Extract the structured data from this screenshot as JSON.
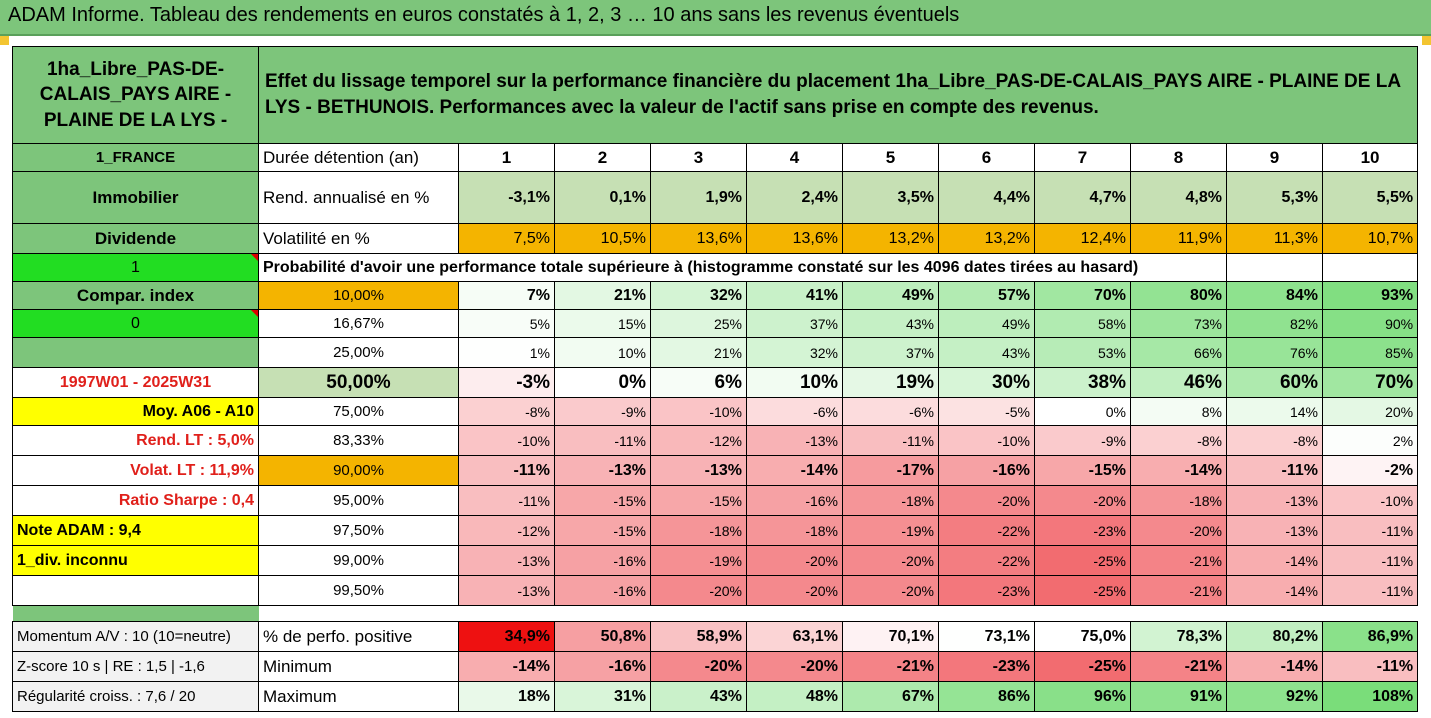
{
  "report_title": "ADAM Informe. Tableau des rendements en euros constatés à 1, 2, 3 … 10 ans sans les revenus éventuels",
  "asset_name": "1ha_Libre_PAS-DE-CALAIS_PAYS AIRE - PLAINE DE LA LYS -",
  "description": "Effet du lissage temporel sur la performance financière du placement 1ha_Libre_PAS-DE-CALAIS_PAYS AIRE - PLAINE DE LA LYS - BETHUNOIS. Performances avec la valeur de l'actif sans prise en compte des revenus.",
  "colors": {
    "header_green": "#7DC57B",
    "light_green": "#C6E0B4",
    "orange": "#F4B400",
    "bright_green": "#22DD22",
    "yellow": "#FFFF00",
    "red_text": "#E0201B"
  },
  "side": {
    "country": "1_FRANCE",
    "category": "Immobilier",
    "dividend_label": "Dividende",
    "dividend_value": "1",
    "compar_label": "Compar. index",
    "compar_value": "0",
    "period": "1997W01 - 2025W31",
    "moy": "Moy. A06 - A10",
    "rend_lt": "Rend. LT :   5,0%",
    "volat_lt": "Volat. LT :   11,9%",
    "sharpe": "Ratio Sharpe :   0,4",
    "note": "Note ADAM : 9,4",
    "div": "1_div. inconnu",
    "momentum": "Momentum A/V : 10 (10=neutre)",
    "zscore": "Z-score 10 s  |  RE : 1,5  |  -1,6",
    "regularite": "Régularité croiss. : 7,6 / 20"
  },
  "header_row": {
    "label": "Durée détention (an)",
    "years": [
      "1",
      "2",
      "3",
      "4",
      "5",
      "6",
      "7",
      "8",
      "9",
      "10"
    ]
  },
  "rend_row": {
    "label": "Rend. annualisé en %",
    "values": [
      "-3,1%",
      "0,1%",
      "1,9%",
      "2,4%",
      "3,5%",
      "4,4%",
      "4,7%",
      "4,8%",
      "5,3%",
      "5,5%"
    ]
  },
  "vol_row": {
    "label": "Volatilité en %",
    "values": [
      "7,5%",
      "10,5%",
      "13,6%",
      "13,6%",
      "13,2%",
      "13,2%",
      "12,4%",
      "11,9%",
      "11,3%",
      "10,7%"
    ]
  },
  "prob_title": "Probabilité d'avoir une performance totale supérieure à (histogramme constaté sur les 4096 dates tirées au hasard)",
  "prob_rows": [
    {
      "label": "10,00%",
      "values": [
        "7%",
        "21%",
        "32%",
        "41%",
        "49%",
        "57%",
        "70%",
        "80%",
        "84%",
        "93%"
      ]
    },
    {
      "label": "16,67%",
      "values": [
        "5%",
        "15%",
        "25%",
        "37%",
        "43%",
        "49%",
        "58%",
        "73%",
        "82%",
        "90%"
      ]
    },
    {
      "label": "25,00%",
      "values": [
        "1%",
        "10%",
        "21%",
        "32%",
        "37%",
        "43%",
        "53%",
        "66%",
        "76%",
        "85%"
      ]
    },
    {
      "label": "50,00%",
      "values": [
        "-3%",
        "0%",
        "6%",
        "10%",
        "19%",
        "30%",
        "38%",
        "46%",
        "60%",
        "70%"
      ]
    },
    {
      "label": "75,00%",
      "values": [
        "-8%",
        "-9%",
        "-10%",
        "-6%",
        "-6%",
        "-5%",
        "0%",
        "8%",
        "14%",
        "20%"
      ]
    },
    {
      "label": "83,33%",
      "values": [
        "-10%",
        "-11%",
        "-12%",
        "-13%",
        "-11%",
        "-10%",
        "-9%",
        "-8%",
        "-8%",
        "2%"
      ]
    },
    {
      "label": "90,00%",
      "values": [
        "-11%",
        "-13%",
        "-13%",
        "-14%",
        "-17%",
        "-16%",
        "-15%",
        "-14%",
        "-11%",
        "-2%"
      ]
    },
    {
      "label": "95,00%",
      "values": [
        "-11%",
        "-15%",
        "-15%",
        "-16%",
        "-18%",
        "-20%",
        "-20%",
        "-18%",
        "-13%",
        "-10%"
      ]
    },
    {
      "label": "97,50%",
      "values": [
        "-12%",
        "-15%",
        "-18%",
        "-18%",
        "-19%",
        "-22%",
        "-23%",
        "-20%",
        "-13%",
        "-11%"
      ]
    },
    {
      "label": "99,00%",
      "values": [
        "-13%",
        "-16%",
        "-19%",
        "-20%",
        "-20%",
        "-22%",
        "-25%",
        "-21%",
        "-14%",
        "-11%"
      ]
    },
    {
      "label": "99,50%",
      "values": [
        "-13%",
        "-16%",
        "-20%",
        "-20%",
        "-20%",
        "-23%",
        "-25%",
        "-21%",
        "-14%",
        "-11%"
      ]
    }
  ],
  "pos_row": {
    "label": "% de perfo. positive",
    "values": [
      "34,9%",
      "50,8%",
      "58,9%",
      "63,1%",
      "70,1%",
      "73,1%",
      "75,0%",
      "78,3%",
      "80,2%",
      "86,9%"
    ]
  },
  "min_row": {
    "label": "Minimum",
    "values": [
      "-14%",
      "-16%",
      "-20%",
      "-20%",
      "-21%",
      "-23%",
      "-25%",
      "-21%",
      "-14%",
      "-11%"
    ]
  },
  "max_row": {
    "label": "Maximum",
    "values": [
      "18%",
      "31%",
      "43%",
      "48%",
      "67%",
      "86%",
      "96%",
      "91%",
      "92%",
      "108%"
    ]
  }
}
